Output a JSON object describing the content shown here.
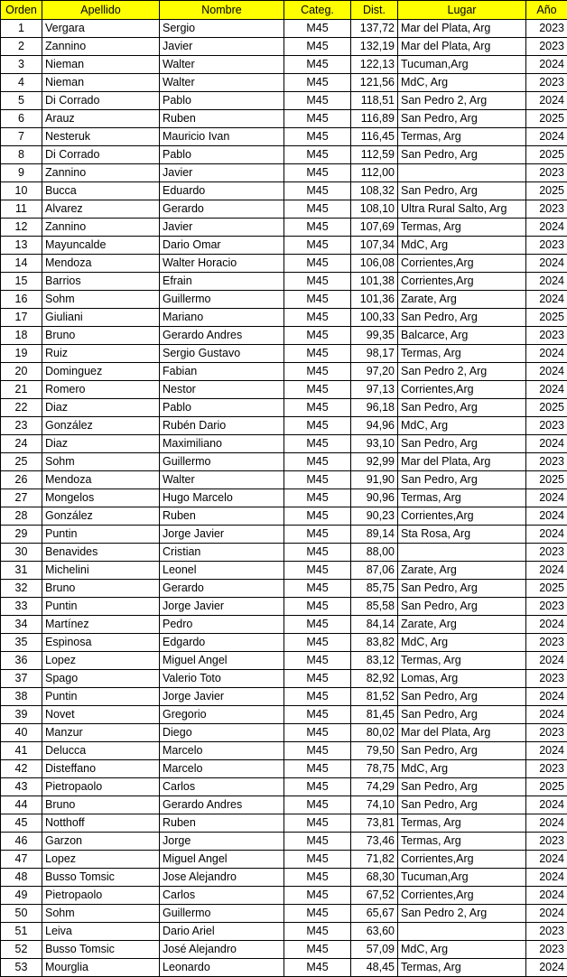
{
  "header_color": "#ffff00",
  "columns": [
    "Orden",
    "Apellido",
    "Nombre",
    "Categ.",
    "Dist.",
    "Lugar",
    "Año"
  ],
  "rows": [
    [
      "1",
      "Vergara",
      "Sergio",
      "M45",
      "137,72",
      "Mar del Plata, Arg",
      "2023"
    ],
    [
      "2",
      "Zannino",
      "Javier",
      "M45",
      "132,19",
      "Mar del Plata, Arg",
      "2023"
    ],
    [
      "3",
      "Nieman",
      "Walter",
      "M45",
      "122,13",
      "Tucuman,Arg",
      "2024"
    ],
    [
      "4",
      "Nieman",
      "Walter",
      "M45",
      "121,56",
      "MdC, Arg",
      "2023"
    ],
    [
      "5",
      "Di Corrado",
      "Pablo",
      "M45",
      "118,51",
      "San Pedro 2, Arg",
      "2024"
    ],
    [
      "6",
      "Arauz",
      "Ruben",
      "M45",
      "116,89",
      "San Pedro, Arg",
      "2025"
    ],
    [
      "7",
      "Nesteruk",
      "Mauricio Ivan",
      "M45",
      "116,45",
      "Termas, Arg",
      "2024"
    ],
    [
      "8",
      "Di Corrado",
      "Pablo",
      "M45",
      "112,59",
      "San Pedro, Arg",
      "2025"
    ],
    [
      "9",
      "Zannino",
      "Javier",
      "M45",
      "112,00",
      "",
      "2023"
    ],
    [
      "10",
      "Bucca",
      "Eduardo",
      "M45",
      "108,32",
      "San Pedro, Arg",
      "2025"
    ],
    [
      "11",
      "Alvarez",
      "Gerardo",
      "M45",
      "108,10",
      "Ultra Rural Salto, Arg",
      "2023"
    ],
    [
      "12",
      "Zannino",
      "Javier",
      "M45",
      "107,69",
      "Termas, Arg",
      "2024"
    ],
    [
      "13",
      "Mayuncalde",
      "Dario Omar",
      "M45",
      "107,34",
      "MdC, Arg",
      "2023"
    ],
    [
      "14",
      "Mendoza",
      "Walter Horacio",
      "M45",
      "106,08",
      "Corrientes,Arg",
      "2024"
    ],
    [
      "15",
      "Barrios",
      "Efrain",
      "M45",
      "101,38",
      "Corrientes,Arg",
      "2024"
    ],
    [
      "16",
      "Sohm",
      "Guillermo",
      "M45",
      "101,36",
      "Zarate, Arg",
      "2024"
    ],
    [
      "17",
      "Giuliani",
      "Mariano",
      "M45",
      "100,33",
      "San Pedro, Arg",
      "2025"
    ],
    [
      "18",
      "Bruno",
      "Gerardo Andres",
      "M45",
      "99,35",
      "Balcarce, Arg",
      "2023"
    ],
    [
      "19",
      "Ruiz",
      "Sergio Gustavo",
      "M45",
      "98,17",
      "Termas, Arg",
      "2024"
    ],
    [
      "20",
      "Dominguez",
      "Fabian",
      "M45",
      "97,20",
      "San Pedro 2, Arg",
      "2024"
    ],
    [
      "21",
      "Romero",
      "Nestor",
      "M45",
      "97,13",
      "Corrientes,Arg",
      "2024"
    ],
    [
      "22",
      "Diaz",
      "Pablo",
      "M45",
      "96,18",
      "San Pedro, Arg",
      "2025"
    ],
    [
      "23",
      "González",
      "Rubén Dario",
      "M45",
      "94,96",
      "MdC, Arg",
      "2023"
    ],
    [
      "24",
      "Diaz",
      "Maximiliano",
      "M45",
      "93,10",
      "San Pedro, Arg",
      "2024"
    ],
    [
      "25",
      "Sohm",
      "Guillermo",
      "M45",
      "92,99",
      "Mar del Plata, Arg",
      "2023"
    ],
    [
      "26",
      "Mendoza",
      "Walter",
      "M45",
      "91,90",
      "San Pedro, Arg",
      "2025"
    ],
    [
      "27",
      "Mongelos",
      "Hugo Marcelo",
      "M45",
      "90,96",
      "Termas, Arg",
      "2024"
    ],
    [
      "28",
      "González",
      "Ruben",
      "M45",
      "90,23",
      "Corrientes,Arg",
      "2024"
    ],
    [
      "29",
      "Puntin",
      "Jorge Javier",
      "M45",
      "89,14",
      "Sta Rosa, Arg",
      "2024"
    ],
    [
      "30",
      "Benavides",
      "Cristian",
      "M45",
      "88,00",
      "",
      "2023"
    ],
    [
      "31",
      "Michelini",
      "Leonel",
      "M45",
      "87,06",
      "Zarate, Arg",
      "2024"
    ],
    [
      "32",
      "Bruno",
      "Gerardo",
      "M45",
      "85,75",
      "San Pedro, Arg",
      "2025"
    ],
    [
      "33",
      "Puntin",
      "Jorge Javier",
      "M45",
      "85,58",
      "San Pedro, Arg",
      "2023"
    ],
    [
      "34",
      "Martínez",
      "Pedro",
      "M45",
      "84,14",
      "Zarate, Arg",
      "2024"
    ],
    [
      "35",
      "Espinosa",
      "Edgardo",
      "M45",
      "83,82",
      "MdC, Arg",
      "2023"
    ],
    [
      "36",
      "Lopez",
      "Miguel Angel",
      "M45",
      "83,12",
      "Termas, Arg",
      "2024"
    ],
    [
      "37",
      "Spago",
      "Valerio Toto",
      "M45",
      "82,92",
      "Lomas, Arg",
      "2023"
    ],
    [
      "38",
      "Puntin",
      "Jorge Javier",
      "M45",
      "81,52",
      "San Pedro, Arg",
      "2024"
    ],
    [
      "39",
      "Novet",
      "Gregorio",
      "M45",
      "81,45",
      "San Pedro, Arg",
      "2024"
    ],
    [
      "40",
      "Manzur",
      "Diego",
      "M45",
      "80,02",
      "Mar del Plata, Arg",
      "2023"
    ],
    [
      "41",
      "Delucca",
      "Marcelo",
      "M45",
      "79,50",
      "San Pedro, Arg",
      "2024"
    ],
    [
      "42",
      "Disteffano",
      "Marcelo",
      "M45",
      "78,75",
      "MdC, Arg",
      "2023"
    ],
    [
      "43",
      "Pietropaolo",
      "Carlos",
      "M45",
      "74,29",
      "San Pedro, Arg",
      "2025"
    ],
    [
      "44",
      "Bruno",
      "Gerardo Andres",
      "M45",
      "74,10",
      "San Pedro, Arg",
      "2024"
    ],
    [
      "45",
      "Notthoff",
      "Ruben",
      "M45",
      "73,81",
      "Termas, Arg",
      "2024"
    ],
    [
      "46",
      "Garzon",
      "Jorge",
      "M45",
      "73,46",
      "Termas, Arg",
      "2023"
    ],
    [
      "47",
      "Lopez",
      "Miguel Angel",
      "M45",
      "71,82",
      "Corrientes,Arg",
      "2024"
    ],
    [
      "48",
      "Busso Tomsic",
      "Jose Alejandro",
      "M45",
      "68,30",
      "Tucuman,Arg",
      "2024"
    ],
    [
      "49",
      "Pietropaolo",
      "Carlos",
      "M45",
      "67,52",
      "Corrientes,Arg",
      "2024"
    ],
    [
      "50",
      "Sohm",
      "Guillermo",
      "M45",
      "65,67",
      "San Pedro 2, Arg",
      "2024"
    ],
    [
      "51",
      "Leiva",
      "Dario Ariel",
      "M45",
      "63,60",
      "",
      "2023"
    ],
    [
      "52",
      "Busso Tomsic",
      "José Alejandro",
      "M45",
      "57,09",
      "MdC, Arg",
      "2023"
    ],
    [
      "53",
      "Mourglia",
      "Leonardo",
      "M45",
      "48,45",
      "Termas, Arg",
      "2024"
    ]
  ]
}
